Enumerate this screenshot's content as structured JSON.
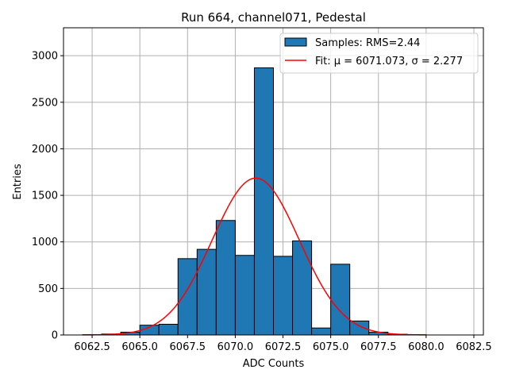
{
  "chart_data": {
    "type": "bar",
    "title": "Run 664, channel071, Pedestal",
    "xlabel": "ADC Counts",
    "ylabel": "Entries",
    "xlim": [
      6061.0,
      6083.0
    ],
    "ylim": [
      0,
      3300
    ],
    "xticks": [
      6062.5,
      6065.0,
      6067.5,
      6070.0,
      6072.5,
      6075.0,
      6077.5,
      6080.0,
      6082.5
    ],
    "xtick_labels": [
      "6062.5",
      "6065.0",
      "6067.5",
      "6070.0",
      "6072.5",
      "6075.0",
      "6077.5",
      "6080.0",
      "6082.5"
    ],
    "yticks": [
      0,
      500,
      1000,
      1500,
      2000,
      2500,
      3000
    ],
    "ytick_labels": [
      "0",
      "500",
      "1000",
      "1500",
      "2000",
      "2500",
      "3000"
    ],
    "grid": true,
    "legend_position": "top-right",
    "bin_width": 1.0,
    "bins": [
      {
        "left": 6062.0,
        "value": 3
      },
      {
        "left": 6063.0,
        "value": 10
      },
      {
        "left": 6064.0,
        "value": 30
      },
      {
        "left": 6065.0,
        "value": 105
      },
      {
        "left": 6066.0,
        "value": 115
      },
      {
        "left": 6067.0,
        "value": 820
      },
      {
        "left": 6068.0,
        "value": 920
      },
      {
        "left": 6069.0,
        "value": 1230
      },
      {
        "left": 6070.0,
        "value": 855
      },
      {
        "left": 6071.0,
        "value": 2870
      },
      {
        "left": 6072.0,
        "value": 845
      },
      {
        "left": 6073.0,
        "value": 1010
      },
      {
        "left": 6074.0,
        "value": 75
      },
      {
        "left": 6075.0,
        "value": 760
      },
      {
        "left": 6076.0,
        "value": 150
      },
      {
        "left": 6077.0,
        "value": 30
      },
      {
        "left": 6078.0,
        "value": 8
      },
      {
        "left": 6079.0,
        "value": 2
      }
    ],
    "fit": {
      "mu": 6071.073,
      "sigma": 2.277,
      "amplitude": 1685,
      "x_range": [
        6062.0,
        6080.0
      ]
    },
    "legend": [
      {
        "label": "Samples: RMS=2.44",
        "kind": "bar",
        "color": "#1f77b4"
      },
      {
        "label": "Fit: μ = 6071.073, σ = 2.277",
        "kind": "line",
        "color": "#ff0000"
      }
    ],
    "bar_color": "#1f77b4",
    "fit_color": "#ff0000"
  }
}
